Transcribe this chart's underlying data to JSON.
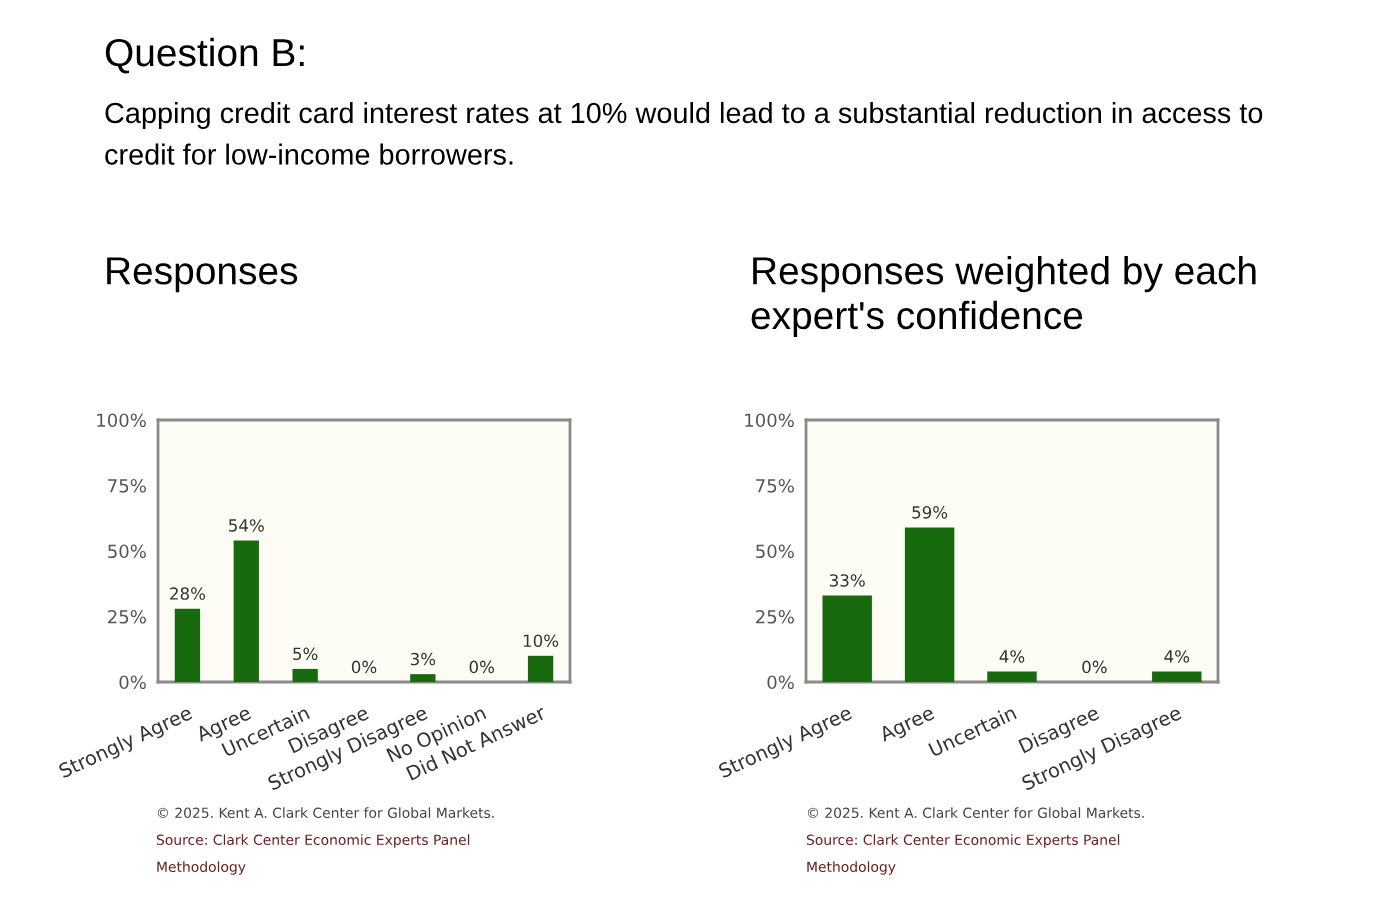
{
  "chart_data": [
    {
      "type": "other",
      "title": "Question B:",
      "subtitle": "Capping credit card interest rates at 10% would lead to a substantial reduction in access to credit for low-income borrowers."
    },
    {
      "type": "bar",
      "title": "Responses",
      "categories": [
        "Strongly Agree",
        "Agree",
        "Uncertain",
        "Disagree",
        "Strongly Disagree",
        "No Opinion",
        "Did Not Answer"
      ],
      "values": [
        28,
        54,
        5,
        0,
        3,
        0,
        10
      ],
      "value_labels": [
        "28%",
        "54%",
        "5%",
        "0%",
        "3%",
        "0%",
        "10%"
      ],
      "color": "#176a0d",
      "ylim": [
        0,
        100
      ],
      "yticks": [
        {
          "value": 0,
          "label": "0%"
        },
        {
          "value": 25,
          "label": "25%"
        },
        {
          "value": 50,
          "label": "50%"
        },
        {
          "value": 75,
          "label": "75%"
        },
        {
          "value": 100,
          "label": "100%"
        }
      ],
      "annotations": [
        "© 2025. Kent A. Clark Center for Global Markets.",
        "Source: Clark Center Economic Experts Panel",
        "Methodology"
      ]
    },
    {
      "type": "bar",
      "title": "Responses weighted by each expert's confidence",
      "categories": [
        "Strongly Agree",
        "Agree",
        "Uncertain",
        "Disagree",
        "Strongly Disagree"
      ],
      "values": [
        33,
        59,
        4,
        0,
        4
      ],
      "value_labels": [
        "33%",
        "59%",
        "4%",
        "0%",
        "4%"
      ],
      "color": "#176a0d",
      "ylim": [
        0,
        100
      ],
      "yticks": [
        {
          "value": 0,
          "label": "0%"
        },
        {
          "value": 25,
          "label": "25%"
        },
        {
          "value": 50,
          "label": "50%"
        },
        {
          "value": 75,
          "label": "75%"
        },
        {
          "value": 100,
          "label": "100%"
        }
      ],
      "annotations": [
        "© 2025. Kent A. Clark Center for Global Markets.",
        "Source: Clark Center Economic Experts Panel",
        "Methodology"
      ]
    }
  ]
}
